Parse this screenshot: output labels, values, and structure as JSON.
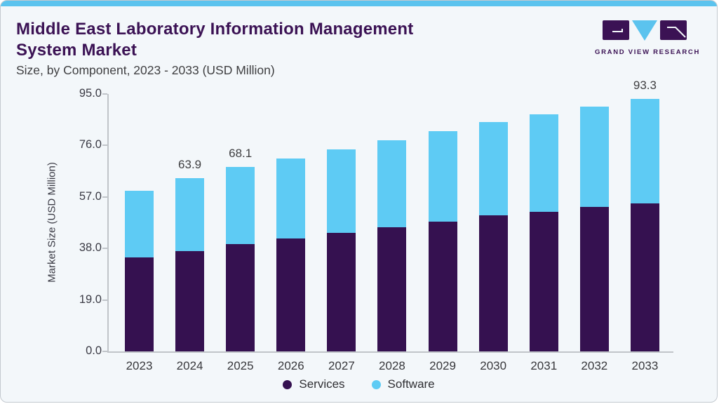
{
  "card": {
    "background": "#f3f7fa",
    "top_strip_color": "#5bc3ee",
    "border_color": "#c3c9cf",
    "title_color": "#3b1254"
  },
  "header": {
    "title_line1": "Middle East Laboratory Information Management",
    "title_line2": "System Market",
    "subtitle": "Size, by Component, 2023 - 2033 (USD Million)"
  },
  "logo": {
    "text": "GRAND VIEW RESEARCH",
    "purple": "#3b1254",
    "blue": "#5bc3ee"
  },
  "chart_data": {
    "type": "bar",
    "stacked": true,
    "title": "Middle East Laboratory Information Management System Market",
    "subtitle": "Size, by Component, 2023 - 2033 (USD Million)",
    "xlabel": "",
    "ylabel": "Market Size (USD Million)",
    "ylim": [
      0,
      95
    ],
    "yticks": [
      0.0,
      19.0,
      38.0,
      57.0,
      76.0,
      95.0
    ],
    "grid": false,
    "legend_position": "bottom",
    "categories": [
      "2023",
      "2024",
      "2025",
      "2026",
      "2027",
      "2028",
      "2029",
      "2030",
      "2031",
      "2032",
      "2033"
    ],
    "series": [
      {
        "name": "Services",
        "color": "#351150",
        "values": [
          34.7,
          37.1,
          39.7,
          41.8,
          43.8,
          45.8,
          47.8,
          50.1,
          51.6,
          53.3,
          54.7
        ]
      },
      {
        "name": "Software",
        "color": "#5ecbf4",
        "values": [
          24.7,
          26.8,
          28.4,
          29.3,
          30.8,
          32.0,
          33.4,
          34.6,
          35.9,
          37.0,
          38.6
        ]
      }
    ],
    "totals": [
      59.4,
      63.9,
      68.1,
      71.1,
      74.6,
      77.8,
      81.2,
      84.7,
      87.5,
      90.3,
      93.3
    ],
    "bar_value_labels": [
      "",
      "63.9",
      "68.1",
      "",
      "",
      "",
      "",
      "",
      "",
      "",
      "93.3"
    ]
  }
}
